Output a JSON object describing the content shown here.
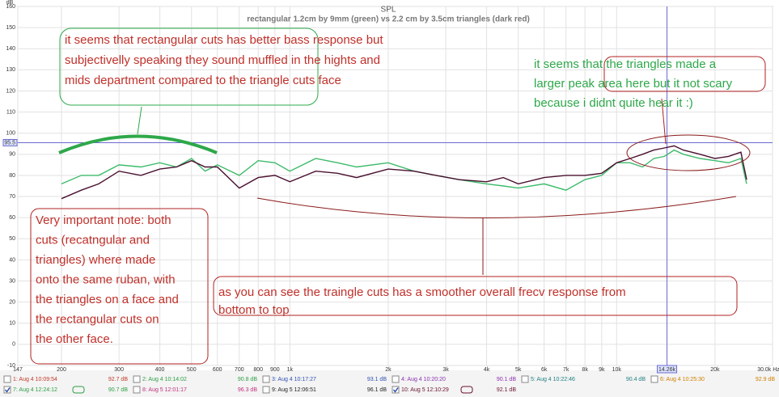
{
  "chart_data": {
    "type": "line",
    "title": "SPL",
    "subtitle": "rectangular 1.2cm by 9mm (green) vs 2.2 cm by 3.5cm triangles (dark red)",
    "y_label": "dB",
    "log_x": true,
    "grid": true,
    "xlim": [
      147,
      30000
    ],
    "ylim": [
      -10,
      160
    ],
    "yticks": [
      -10,
      0,
      10,
      20,
      30,
      40,
      50,
      60,
      70,
      80,
      90,
      100,
      110,
      120,
      130,
      140,
      150,
      160
    ],
    "xticks": [
      147,
      200,
      300,
      400,
      500,
      600,
      700,
      800,
      900,
      {
        "value": 1000,
        "label": "1k"
      },
      {
        "value": 2000,
        "label": "2k"
      },
      {
        "value": 3000,
        "label": "3k"
      },
      {
        "value": 4000,
        "label": "4k"
      },
      {
        "value": 5000,
        "label": "5k"
      },
      {
        "value": 6000,
        "label": "6k"
      },
      {
        "value": 7000,
        "label": "7k"
      },
      {
        "value": 8000,
        "label": "8k"
      },
      {
        "value": 9000,
        "label": "9k"
      },
      {
        "value": 10000,
        "label": "10k"
      },
      {
        "value": 20000,
        "label": "20k"
      },
      {
        "value": 30000,
        "label": "30.0k Hz"
      }
    ],
    "cursor": {
      "x": {
        "value": 14260,
        "label": "14.26k"
      },
      "y": 95.5
    },
    "x": [
      200,
      230,
      260,
      300,
      350,
      400,
      450,
      500,
      550,
      600,
      700,
      800,
      900,
      1000,
      1200,
      1400,
      1600,
      2000,
      2400,
      2800,
      3300,
      4000,
      4500,
      5000,
      6000,
      7000,
      8000,
      9000,
      10000,
      11000,
      12000,
      13000,
      14000,
      15000,
      16000,
      18000,
      20000,
      22000,
      24000,
      25000
    ],
    "series": [
      {
        "color": "#3dbb6b",
        "values": [
          76,
          80,
          80,
          85,
          84,
          86,
          84,
          88,
          82,
          85,
          80,
          87,
          86,
          82,
          88,
          86,
          84,
          86,
          82,
          80,
          78,
          76,
          75,
          74,
          76,
          73,
          78,
          80,
          86,
          86,
          84,
          88,
          89,
          92,
          90,
          88,
          87,
          86,
          88,
          76
        ]
      },
      {
        "color": "#4a1030",
        "values": [
          69,
          73,
          76,
          82,
          80,
          83,
          84,
          87,
          84,
          84,
          74,
          79,
          80,
          77,
          82,
          81,
          79,
          83,
          82,
          80,
          78,
          77,
          79,
          76,
          79,
          80,
          80,
          81,
          86,
          88,
          90,
          92,
          93,
          94,
          92,
          90,
          88,
          89,
          91,
          78
        ]
      }
    ],
    "annotations": [
      {
        "lines": [
          "it seems that rectangular cuts has better bass response but",
          "subjectivelly speaking they sound muffled in the hights and",
          "mids department compared to the triangle cuts face"
        ]
      },
      {
        "lines": [
          "it seems that the triangles made a",
          "larger peak area here but it not scary",
          "because i didnt quite hear it    :)"
        ]
      },
      {
        "lines": [
          "Very important note: both",
          "cuts (recatngular and",
          "triangles) where made",
          "onto the same ruban, with",
          "the triangles on a face and",
          "the rectangular cuts on",
          "the other face."
        ]
      },
      {
        "lines": [
          "as you can see the traingle cuts has a smoother overall frecv response from",
          "bottom to top"
        ]
      }
    ]
  },
  "measurements": [
    {
      "label": "1: Aug 4 10:09:54",
      "reading": "92.7 dB",
      "color": "#c0392b",
      "checked": false
    },
    {
      "label": "2: Aug 4 10:14:02",
      "reading": "90.8 dB",
      "color": "#2e9e44",
      "checked": false
    },
    {
      "label": "3: Aug 4 10:17:27",
      "reading": "93.1 dB",
      "color": "#3050b0",
      "checked": false
    },
    {
      "label": "4: Aug 4 10:20:20",
      "reading": "90.1 dB",
      "color": "#8a30b0",
      "checked": false
    },
    {
      "label": "5: Aug 4 10:22:46",
      "reading": "90.4 dB",
      "color": "#208080",
      "checked": false
    },
    {
      "label": "6: Aug 4 10:25:30",
      "reading": "92.9 dB",
      "color": "#d08000",
      "checked": false
    },
    {
      "label": "7: Aug 4 12:24:12",
      "reading": "90.7 dB",
      "color": "#2e9e44",
      "checked": true
    },
    {
      "label": "8: Aug 5 12:01:17",
      "reading": "96.3 dB",
      "color": "#c03080",
      "checked": false
    },
    {
      "label": "9: Aug 5 12:06:51",
      "reading": "96.1 dB",
      "color": "#222222",
      "checked": false
    },
    {
      "label": "10: Aug 5 12:10:29",
      "reading": "92.1 dB",
      "color": "#6a1030",
      "checked": true
    }
  ]
}
